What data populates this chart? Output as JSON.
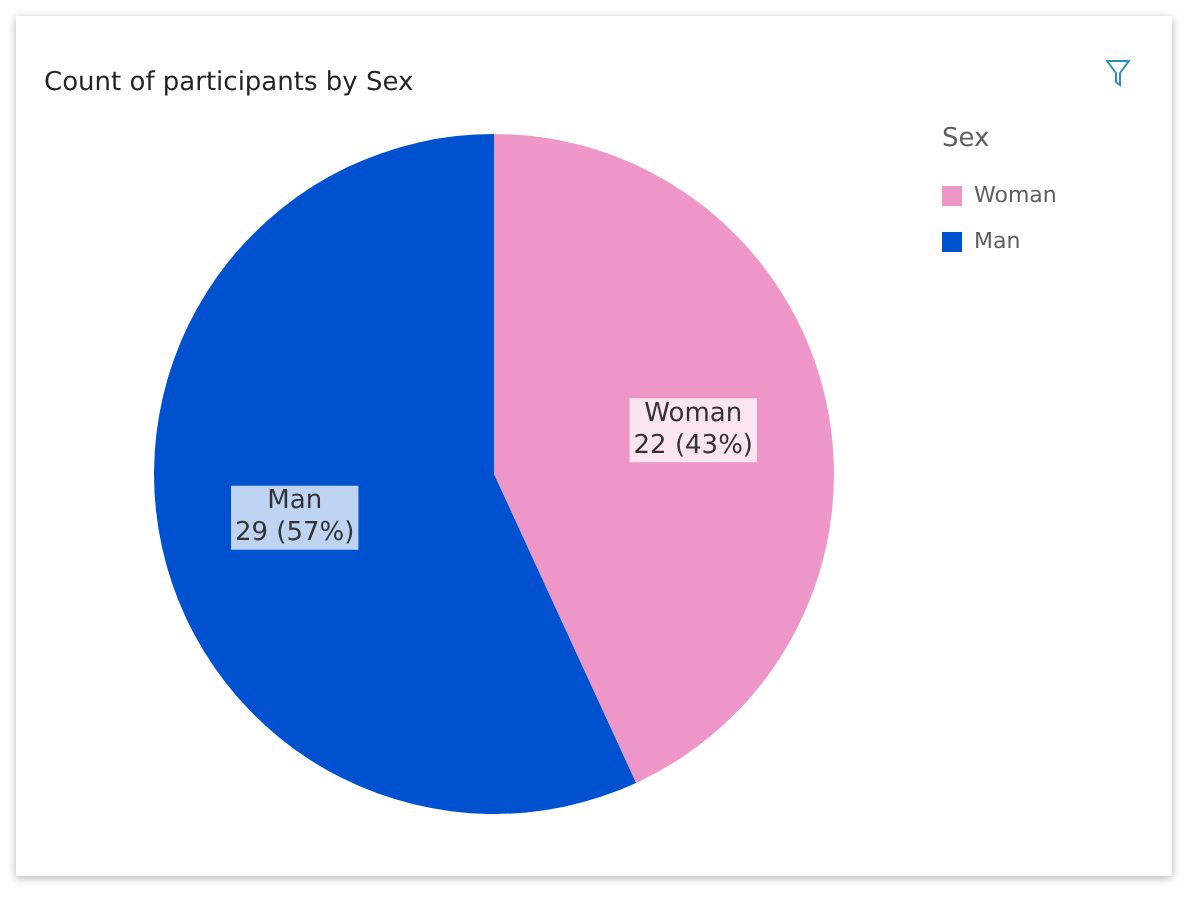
{
  "chart_data": {
    "type": "pie",
    "title": "Count of participants by Sex",
    "legend_title": "Sex",
    "legend": "top right",
    "categories": [
      "Woman",
      "Man"
    ],
    "values": [
      22,
      29
    ],
    "colors": [
      "#ee96c8",
      "#0051cf"
    ],
    "value_labels": [
      "22 (43%)",
      "29 (57%)"
    ]
  }
}
